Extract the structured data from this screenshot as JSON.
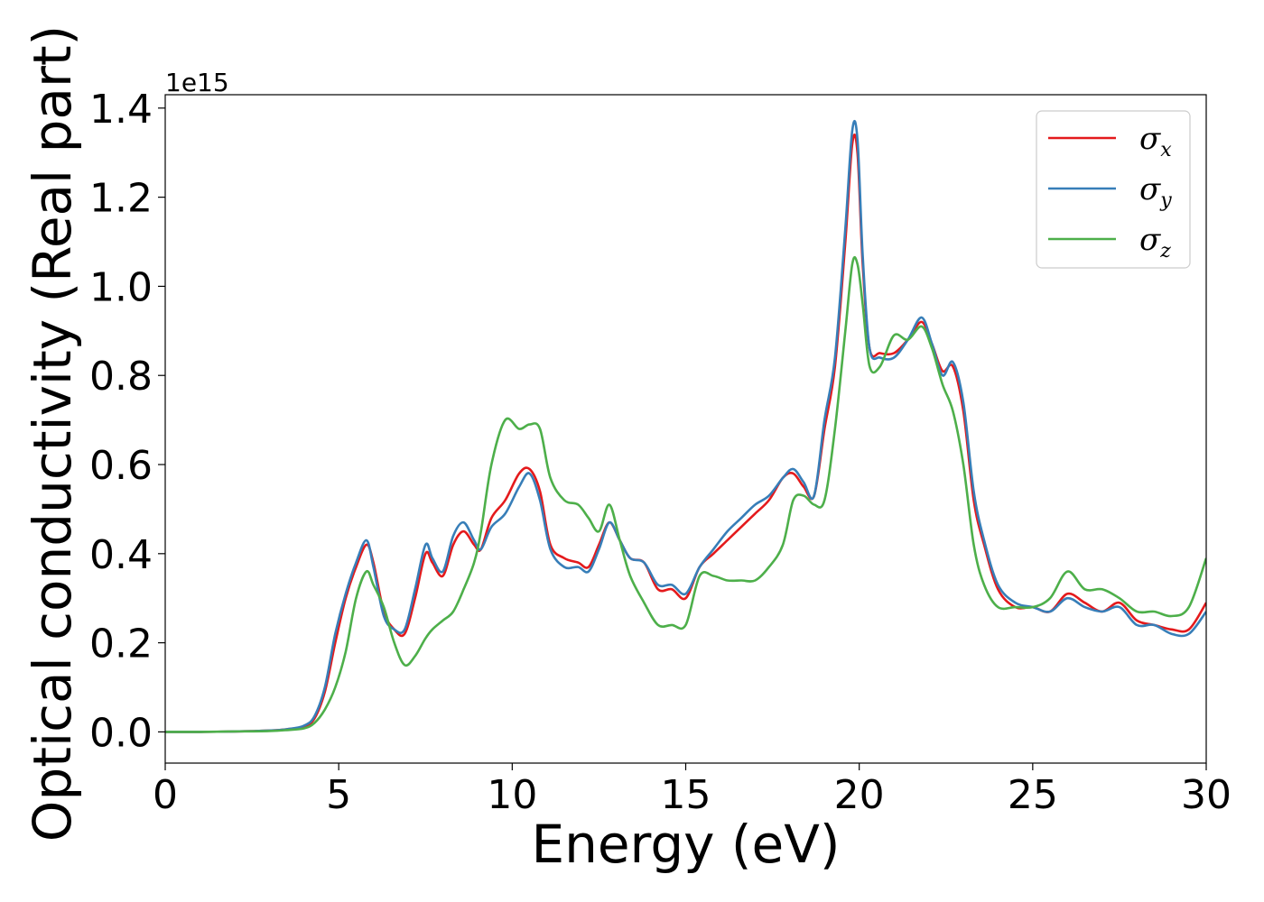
{
  "chart_data": {
    "type": "line",
    "xlabel": "Energy (eV)",
    "ylabel": "Optical conductivity (Real part)",
    "y_offset_label": "1e15",
    "xlim": [
      0,
      30
    ],
    "ylim": [
      -0.07,
      1.43
    ],
    "x_ticks": [
      0,
      5,
      10,
      15,
      20,
      25,
      30
    ],
    "x_tick_labels": [
      "0",
      "5",
      "10",
      "15",
      "20",
      "25",
      "30"
    ],
    "y_ticks": [
      0.0,
      0.2,
      0.4,
      0.6,
      0.8,
      1.0,
      1.2,
      1.4
    ],
    "y_tick_labels": [
      "0.0",
      "0.2",
      "0.4",
      "0.6",
      "0.8",
      "1.0",
      "1.2",
      "1.4"
    ],
    "grid": false,
    "legend_position": "top-right",
    "series": [
      {
        "name": "σx",
        "legend_base": "σ",
        "legend_sub": "x",
        "color": "#e41a1c",
        "x": [
          0,
          1,
          2,
          3,
          3.5,
          4,
          4.3,
          4.6,
          4.9,
          5.2,
          5.5,
          5.8,
          6.0,
          6.3,
          6.6,
          6.9,
          7.2,
          7.5,
          7.7,
          8.0,
          8.3,
          8.6,
          8.9,
          9.1,
          9.4,
          9.8,
          10.2,
          10.5,
          10.8,
          11.1,
          11.5,
          11.9,
          12.2,
          12.5,
          12.8,
          13.1,
          13.4,
          13.8,
          14.2,
          14.6,
          15.0,
          15.4,
          15.8,
          16.2,
          16.6,
          17.0,
          17.4,
          17.8,
          18.1,
          18.4,
          18.7,
          19.0,
          19.3,
          19.6,
          19.8,
          19.95,
          20.1,
          20.3,
          20.6,
          21.0,
          21.4,
          21.8,
          22.1,
          22.4,
          22.7,
          23.0,
          23.3,
          23.6,
          24.0,
          24.5,
          25.0,
          25.5,
          26.0,
          26.5,
          27.0,
          27.5,
          28.0,
          28.5,
          29.0,
          29.5,
          30.0
        ],
        "y": [
          0.0,
          0.0,
          0.001,
          0.003,
          0.006,
          0.012,
          0.03,
          0.09,
          0.2,
          0.3,
          0.37,
          0.42,
          0.38,
          0.27,
          0.23,
          0.22,
          0.3,
          0.4,
          0.38,
          0.35,
          0.42,
          0.45,
          0.42,
          0.41,
          0.48,
          0.52,
          0.58,
          0.59,
          0.54,
          0.42,
          0.39,
          0.38,
          0.37,
          0.42,
          0.47,
          0.43,
          0.39,
          0.38,
          0.32,
          0.32,
          0.3,
          0.37,
          0.4,
          0.43,
          0.46,
          0.49,
          0.52,
          0.57,
          0.58,
          0.55,
          0.53,
          0.68,
          0.82,
          1.1,
          1.32,
          1.3,
          1.05,
          0.86,
          0.85,
          0.85,
          0.88,
          0.92,
          0.87,
          0.81,
          0.82,
          0.72,
          0.52,
          0.42,
          0.32,
          0.28,
          0.28,
          0.27,
          0.31,
          0.29,
          0.27,
          0.29,
          0.25,
          0.24,
          0.23,
          0.23,
          0.29
        ]
      },
      {
        "name": "σy",
        "legend_base": "σ",
        "legend_sub": "y",
        "color": "#377eb8",
        "x": [
          0,
          1,
          2,
          3,
          3.5,
          4,
          4.3,
          4.6,
          4.9,
          5.2,
          5.5,
          5.8,
          6.0,
          6.3,
          6.6,
          6.9,
          7.2,
          7.5,
          7.7,
          8.0,
          8.3,
          8.6,
          8.9,
          9.1,
          9.4,
          9.8,
          10.2,
          10.5,
          10.8,
          11.1,
          11.5,
          11.9,
          12.2,
          12.5,
          12.8,
          13.1,
          13.4,
          13.8,
          14.2,
          14.6,
          15.0,
          15.4,
          15.8,
          16.2,
          16.6,
          17.0,
          17.4,
          17.8,
          18.1,
          18.4,
          18.7,
          19.0,
          19.3,
          19.6,
          19.8,
          19.95,
          20.1,
          20.3,
          20.6,
          21.0,
          21.4,
          21.8,
          22.1,
          22.4,
          22.7,
          23.0,
          23.3,
          23.6,
          24.0,
          24.5,
          25.0,
          25.5,
          26.0,
          26.5,
          27.0,
          27.5,
          28.0,
          28.5,
          29.0,
          29.5,
          30.0
        ],
        "y": [
          0.0,
          0.0,
          0.001,
          0.003,
          0.006,
          0.014,
          0.035,
          0.1,
          0.22,
          0.31,
          0.38,
          0.43,
          0.37,
          0.26,
          0.23,
          0.23,
          0.32,
          0.42,
          0.39,
          0.36,
          0.44,
          0.47,
          0.43,
          0.41,
          0.46,
          0.49,
          0.55,
          0.58,
          0.52,
          0.41,
          0.37,
          0.37,
          0.36,
          0.41,
          0.47,
          0.43,
          0.39,
          0.38,
          0.33,
          0.33,
          0.31,
          0.37,
          0.41,
          0.45,
          0.48,
          0.51,
          0.53,
          0.57,
          0.59,
          0.56,
          0.53,
          0.7,
          0.84,
          1.13,
          1.35,
          1.33,
          1.07,
          0.86,
          0.84,
          0.84,
          0.88,
          0.93,
          0.87,
          0.8,
          0.83,
          0.74,
          0.54,
          0.43,
          0.33,
          0.29,
          0.28,
          0.27,
          0.3,
          0.28,
          0.27,
          0.28,
          0.24,
          0.24,
          0.22,
          0.22,
          0.27
        ]
      },
      {
        "name": "σz",
        "legend_base": "σ",
        "legend_sub": "z",
        "color": "#4daf4a",
        "x": [
          0,
          1,
          2,
          3,
          3.5,
          4,
          4.3,
          4.6,
          4.9,
          5.2,
          5.5,
          5.8,
          6.0,
          6.3,
          6.6,
          6.9,
          7.2,
          7.5,
          7.7,
          8.0,
          8.3,
          8.6,
          8.9,
          9.1,
          9.4,
          9.8,
          10.2,
          10.5,
          10.8,
          11.1,
          11.5,
          11.9,
          12.2,
          12.5,
          12.8,
          13.1,
          13.4,
          13.8,
          14.2,
          14.6,
          15.0,
          15.4,
          15.8,
          16.2,
          16.6,
          17.0,
          17.4,
          17.8,
          18.1,
          18.4,
          18.7,
          19.0,
          19.3,
          19.6,
          19.8,
          19.95,
          20.1,
          20.3,
          20.6,
          21.0,
          21.4,
          21.8,
          22.1,
          22.4,
          22.7,
          23.0,
          23.3,
          23.6,
          24.0,
          24.5,
          25.0,
          25.5,
          26.0,
          26.5,
          27.0,
          27.5,
          28.0,
          28.5,
          29.0,
          29.5,
          30.0
        ],
        "y": [
          0.0,
          0.0,
          0.001,
          0.002,
          0.004,
          0.008,
          0.02,
          0.05,
          0.1,
          0.18,
          0.3,
          0.36,
          0.33,
          0.28,
          0.2,
          0.15,
          0.17,
          0.21,
          0.23,
          0.25,
          0.27,
          0.32,
          0.38,
          0.45,
          0.6,
          0.7,
          0.68,
          0.69,
          0.68,
          0.57,
          0.52,
          0.51,
          0.48,
          0.45,
          0.51,
          0.43,
          0.35,
          0.29,
          0.24,
          0.24,
          0.24,
          0.35,
          0.35,
          0.34,
          0.34,
          0.34,
          0.37,
          0.42,
          0.52,
          0.53,
          0.51,
          0.52,
          0.68,
          0.9,
          1.05,
          1.05,
          0.96,
          0.82,
          0.82,
          0.89,
          0.88,
          0.91,
          0.86,
          0.78,
          0.72,
          0.6,
          0.42,
          0.33,
          0.28,
          0.28,
          0.28,
          0.3,
          0.36,
          0.32,
          0.32,
          0.3,
          0.27,
          0.27,
          0.26,
          0.28,
          0.39
        ]
      }
    ]
  }
}
